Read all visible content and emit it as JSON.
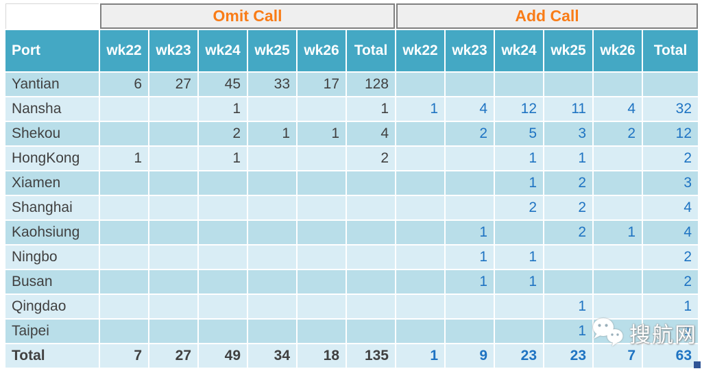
{
  "chart_data": {
    "type": "table",
    "column_groups": [
      "Omit Call",
      "Add Call"
    ],
    "columns": [
      "Port",
      "wk22",
      "wk23",
      "wk24",
      "wk25",
      "wk26",
      "Total",
      "wk22",
      "wk23",
      "wk24",
      "wk25",
      "wk26",
      "Total"
    ],
    "rows": [
      [
        "Yantian",
        "6",
        "27",
        "45",
        "33",
        "17",
        "128",
        "",
        "",
        "",
        "",
        "",
        ""
      ],
      [
        "Nansha",
        "",
        "",
        "1",
        "",
        "",
        "1",
        "1",
        "4",
        "12",
        "11",
        "4",
        "32"
      ],
      [
        "Shekou",
        "",
        "",
        "2",
        "1",
        "1",
        "4",
        "",
        "2",
        "5",
        "3",
        "2",
        "12"
      ],
      [
        "HongKong",
        "1",
        "",
        "1",
        "",
        "",
        "2",
        "",
        "",
        "1",
        "1",
        "",
        "2"
      ],
      [
        "Xiamen",
        "",
        "",
        "",
        "",
        "",
        "",
        "",
        "",
        "1",
        "2",
        "",
        "3"
      ],
      [
        "Shanghai",
        "",
        "",
        "",
        "",
        "",
        "",
        "",
        "",
        "2",
        "2",
        "",
        "4"
      ],
      [
        "Kaohsiung",
        "",
        "",
        "",
        "",
        "",
        "",
        "",
        "1",
        "",
        "2",
        "1",
        "4"
      ],
      [
        "Ningbo",
        "",
        "",
        "",
        "",
        "",
        "",
        "",
        "1",
        "1",
        "",
        "",
        "2"
      ],
      [
        "Busan",
        "",
        "",
        "",
        "",
        "",
        "",
        "",
        "1",
        "1",
        "",
        "",
        "2"
      ],
      [
        "Qingdao",
        "",
        "",
        "",
        "",
        "",
        "",
        "",
        "",
        "",
        "1",
        "",
        "1"
      ],
      [
        "Taipei",
        "",
        "",
        "",
        "",
        "",
        "",
        "",
        "",
        "",
        "1",
        "",
        "1"
      ]
    ],
    "total_row": [
      "Total",
      "7",
      "27",
      "49",
      "34",
      "18",
      "135",
      "1",
      "9",
      "23",
      "23",
      "7",
      "63"
    ]
  },
  "watermark": {
    "brand_text": "搜航网",
    "icon": "wechat-icon"
  },
  "colors": {
    "header_teal": "#44a8c4",
    "band_bg": "#efefef",
    "band_border": "#7f7f7f",
    "band_text_orange": "#f97c17",
    "row_dark": "#b9dee9",
    "row_light": "#d9edf5",
    "omit_text": "#404040",
    "add_text_blue": "#1e73c2",
    "corner_handle_blue": "#2f5496"
  }
}
